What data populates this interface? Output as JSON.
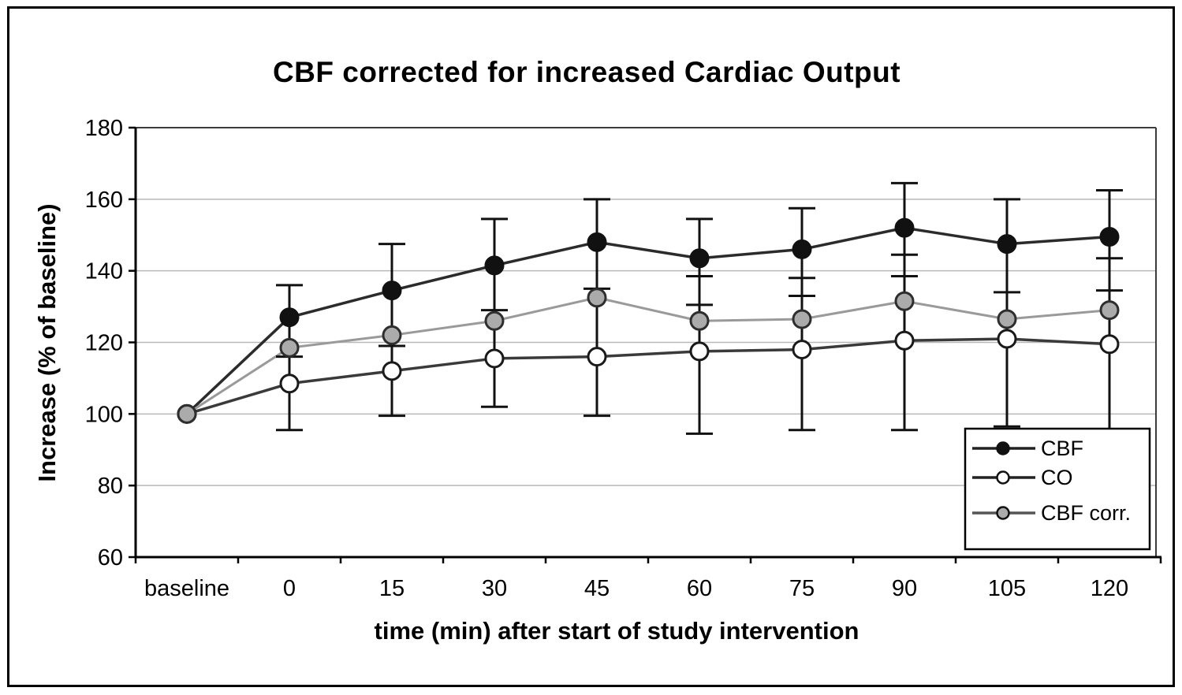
{
  "figure": {
    "background": "#ffffff",
    "border_color": "#000000"
  },
  "chart_data": {
    "type": "line",
    "title": "CBF corrected for increased Cardiac Output",
    "xlabel": "time (min) after start of study intervention",
    "ylabel": "Increase (% of baseline)",
    "categories": [
      "baseline",
      "0",
      "15",
      "30",
      "45",
      "60",
      "75",
      "90",
      "105",
      "120"
    ],
    "ylim": [
      60,
      180
    ],
    "yticks": [
      60,
      80,
      100,
      120,
      140,
      160,
      180
    ],
    "grid": true,
    "legend_position": "inside-bottom-right",
    "colors": {
      "grid": "#b8b8b8",
      "axis": "#000000",
      "frame": "#3c3c3c",
      "error": "#111111",
      "legend_border": "#000000",
      "legend_fill": "#ffffff"
    },
    "series": [
      {
        "name": "CBF",
        "marker": "filled-circle",
        "line_color": "#2b2b2b",
        "marker_fill": "#111111",
        "marker_stroke": "#111111",
        "legend_line_color": "#222222",
        "values": [
          100,
          127,
          134.5,
          141.5,
          148,
          143.5,
          146,
          152,
          147.5,
          149.5
        ]
      },
      {
        "name": "CO",
        "marker": "open-circle",
        "line_color": "#3a3a3a",
        "marker_fill": "#ffffff",
        "marker_stroke": "#1a1a1a",
        "legend_line_color": "#222222",
        "values": [
          100,
          108.5,
          112,
          115.5,
          116,
          117.5,
          118,
          120.5,
          121,
          119.5
        ]
      },
      {
        "name": "CBF corr.",
        "marker": "gray-filled-circle",
        "line_color": "#9a9a9a",
        "marker_fill": "#ababab",
        "marker_stroke": "#2e2e2e",
        "legend_line_color": "#555555",
        "values": [
          100,
          118.5,
          122,
          126,
          132.5,
          126,
          126.5,
          131.5,
          126.5,
          129
        ]
      }
    ],
    "error_bars": [
      {
        "x_index": 1,
        "caps": [
          136,
          116,
          95.5
        ]
      },
      {
        "x_index": 2,
        "caps": [
          147.5,
          119,
          99.5
        ]
      },
      {
        "x_index": 3,
        "caps": [
          154.5,
          129,
          102
        ]
      },
      {
        "x_index": 4,
        "caps": [
          160,
          135,
          99.5
        ]
      },
      {
        "x_index": 5,
        "caps": [
          154.5,
          138.5,
          130.5,
          94.5
        ]
      },
      {
        "x_index": 6,
        "caps": [
          157.5,
          138,
          133,
          95.5
        ]
      },
      {
        "x_index": 7,
        "caps": [
          164.5,
          144.5,
          138.5,
          95.5
        ]
      },
      {
        "x_index": 8,
        "caps": [
          160,
          134,
          96.5
        ]
      },
      {
        "x_index": 9,
        "caps": [
          162.5,
          143.5,
          134.5
        ],
        "line_min": 96
      }
    ]
  }
}
